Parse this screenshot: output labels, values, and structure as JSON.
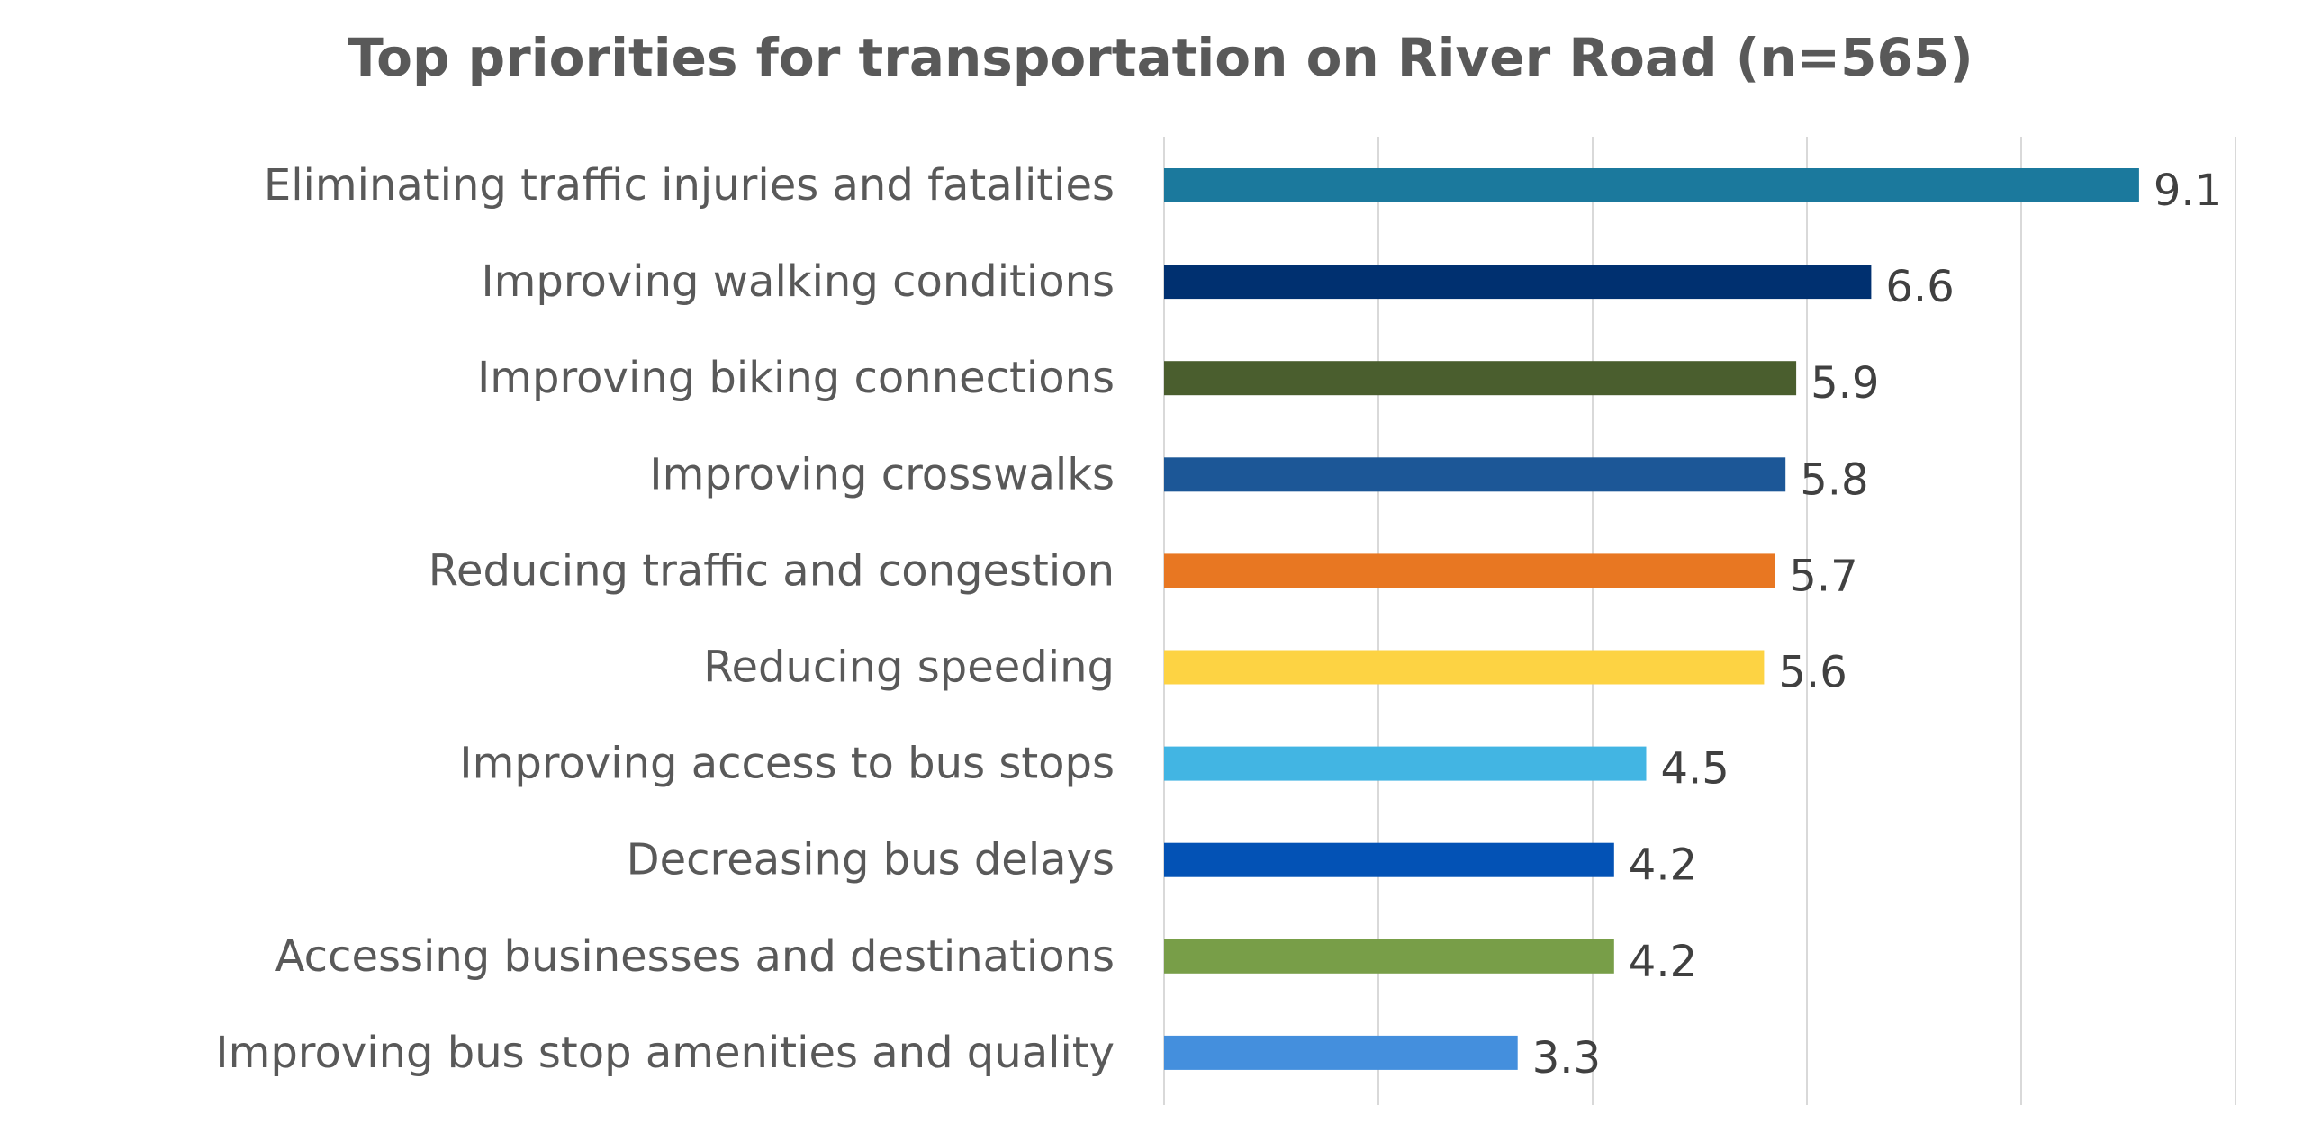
{
  "chart_data": {
    "type": "bar",
    "orientation": "horizontal",
    "title": "Top priorities for transportation on River Road (n=565)",
    "xlabel": "",
    "ylabel": "",
    "xlim": [
      0,
      10
    ],
    "grid": true,
    "legend": "none",
    "categories": [
      "Eliminating traffic injuries and fatalities",
      "Improving walking conditions",
      "Improving biking connections",
      "Improving crosswalks",
      "Reducing traffic and congestion",
      "Reducing speeding",
      "Improving access to bus stops",
      "Decreasing bus delays",
      "Accessing businesses and destinations",
      "Improving bus stop amenities and quality"
    ],
    "values": [
      9.1,
      6.6,
      5.9,
      5.8,
      5.7,
      5.6,
      4.5,
      4.2,
      4.2,
      3.3
    ],
    "value_labels": [
      "9.1",
      "6.6",
      "5.9",
      "5.8",
      "5.7",
      "5.6",
      "4.5",
      "4.2",
      "4.2",
      "3.3"
    ],
    "colors": [
      "#1B799D",
      "#003070",
      "#4A5E2E",
      "#1C5797",
      "#E87722",
      "#FDD343",
      "#42B5E3",
      "#0352B5",
      "#789E48",
      "#448FDD"
    ]
  }
}
